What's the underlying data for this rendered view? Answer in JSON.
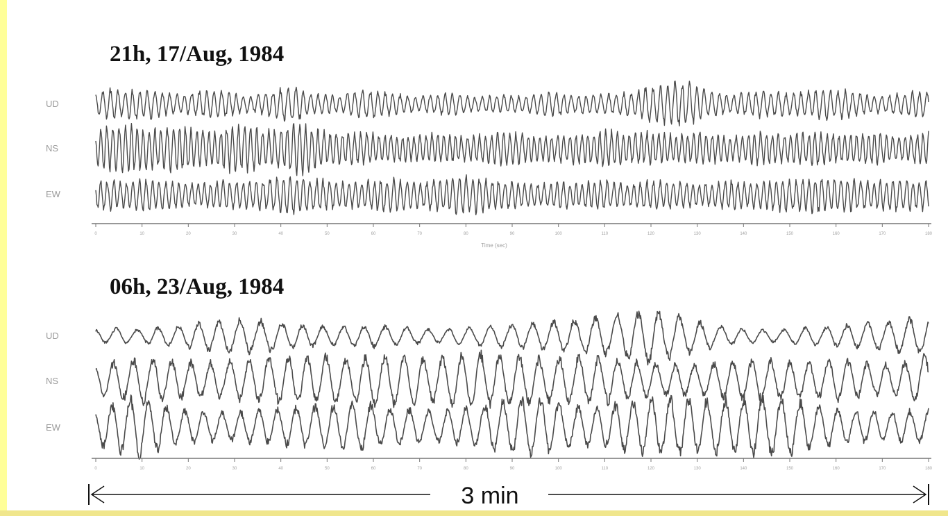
{
  "colors": {
    "frame_left": "#ffff99",
    "frame_bottom": "#f0e68c",
    "trace": "#4a4a4a",
    "axis": "#777777",
    "label_gray": "#9a9a9a",
    "title": "#111111"
  },
  "chart_data": [
    {
      "type": "line",
      "title": "21h, 17/Aug, 1984",
      "xlabel": "Time (sec)",
      "ylabel": "",
      "channels": [
        "UD",
        "NS",
        "EW"
      ],
      "x_ticks": [
        0,
        10,
        20,
        30,
        40,
        50,
        60,
        70,
        80,
        90,
        100,
        110,
        120,
        130,
        140,
        150,
        160,
        170,
        180
      ],
      "xlim": [
        0,
        180
      ],
      "grid": false,
      "series": [
        {
          "name": "UD",
          "period_s": 1.6,
          "amplitude": [
            0.35,
            0.55,
            0.45,
            0.6,
            0.5,
            0.4,
            0.35,
            0.4,
            0.55,
            0.5,
            0.35,
            0.3,
            0.4,
            0.55,
            0.7,
            0.4,
            0.35,
            0.3,
            0.4,
            0.55,
            0.5,
            0.4,
            0.3,
            0.3,
            0.35,
            0.4,
            0.35,
            0.25,
            0.3,
            0.35,
            0.3,
            0.35,
            0.45,
            0.4,
            0.3,
            0.35,
            0.35,
            0.4,
            0.45,
            0.6,
            0.7,
            0.85,
            0.8,
            0.55,
            0.4,
            0.35,
            0.4,
            0.5,
            0.45,
            0.4,
            0.45,
            0.5,
            0.55,
            0.5,
            0.4,
            0.35,
            0.3,
            0.4,
            0.45,
            0.5
          ]
        },
        {
          "name": "NS",
          "period_s": 1.3,
          "amplitude": [
            0.6,
            0.85,
            0.9,
            0.75,
            0.7,
            0.8,
            0.85,
            0.7,
            0.6,
            0.75,
            0.85,
            0.8,
            0.7,
            0.75,
            0.9,
            0.85,
            0.65,
            0.6,
            0.55,
            0.6,
            0.55,
            0.5,
            0.45,
            0.5,
            0.55,
            0.5,
            0.45,
            0.5,
            0.55,
            0.6,
            0.55,
            0.5,
            0.45,
            0.5,
            0.55,
            0.6,
            0.65,
            0.6,
            0.55,
            0.6,
            0.55,
            0.5,
            0.55,
            0.6,
            0.5,
            0.45,
            0.5,
            0.6,
            0.55,
            0.5,
            0.6,
            0.65,
            0.55,
            0.5,
            0.55,
            0.6,
            0.5,
            0.45,
            0.55,
            0.6
          ]
        },
        {
          "name": "EW",
          "period_s": 1.4,
          "amplitude": [
            0.5,
            0.55,
            0.45,
            0.55,
            0.6,
            0.5,
            0.45,
            0.4,
            0.45,
            0.55,
            0.5,
            0.45,
            0.55,
            0.65,
            0.7,
            0.6,
            0.55,
            0.5,
            0.45,
            0.5,
            0.55,
            0.6,
            0.5,
            0.45,
            0.55,
            0.6,
            0.7,
            0.65,
            0.55,
            0.5,
            0.45,
            0.4,
            0.45,
            0.5,
            0.45,
            0.5,
            0.55,
            0.45,
            0.4,
            0.5,
            0.55,
            0.5,
            0.45,
            0.4,
            0.45,
            0.55,
            0.5,
            0.45,
            0.55,
            0.6,
            0.55,
            0.65,
            0.6,
            0.7,
            0.55,
            0.5,
            0.55,
            0.6,
            0.5,
            0.55
          ]
        }
      ]
    },
    {
      "type": "line",
      "title": "06h, 23/Aug, 1984",
      "xlabel": "",
      "ylabel": "",
      "channels": [
        "UD",
        "NS",
        "EW"
      ],
      "x_ticks": [
        0,
        10,
        20,
        30,
        40,
        50,
        60,
        70,
        80,
        90,
        100,
        110,
        120,
        130,
        140,
        150,
        160,
        170,
        180
      ],
      "xlim": [
        0,
        180
      ],
      "grid": false,
      "series": [
        {
          "name": "UD",
          "period_s": 4.5,
          "amplitude": [
            0.2,
            0.25,
            0.2,
            0.3,
            0.35,
            0.45,
            0.5,
            0.55,
            0.5,
            0.4,
            0.35,
            0.3,
            0.3,
            0.35,
            0.3,
            0.25,
            0.2,
            0.25,
            0.3,
            0.35,
            0.4,
            0.45,
            0.5,
            0.55,
            0.6,
            0.75,
            0.85,
            0.7,
            0.5,
            0.35,
            0.25,
            0.2,
            0.2,
            0.25,
            0.3,
            0.35,
            0.4,
            0.45,
            0.55,
            0.6
          ]
        },
        {
          "name": "NS",
          "period_s": 4.2,
          "amplitude": [
            0.45,
            0.6,
            0.7,
            0.75,
            0.6,
            0.55,
            0.6,
            0.65,
            0.7,
            0.75,
            0.8,
            0.75,
            0.7,
            0.75,
            0.8,
            0.75,
            0.7,
            0.8,
            0.85,
            0.8,
            0.75,
            0.7,
            0.75,
            0.8,
            0.75,
            0.6,
            0.55,
            0.5,
            0.5,
            0.55,
            0.6,
            0.65,
            0.6,
            0.55,
            0.6,
            0.65,
            0.55,
            0.5,
            0.55,
            0.9
          ]
        },
        {
          "name": "EW",
          "period_s": 4.0,
          "amplitude": [
            0.55,
            0.8,
            0.95,
            0.75,
            0.55,
            0.5,
            0.45,
            0.5,
            0.55,
            0.6,
            0.65,
            0.7,
            0.75,
            0.7,
            0.6,
            0.55,
            0.5,
            0.55,
            0.65,
            0.8,
            0.95,
            0.9,
            0.7,
            0.6,
            0.65,
            0.8,
            0.9,
            0.95,
            0.9,
            0.85,
            0.9,
            0.95,
            0.95,
            0.85,
            0.7,
            0.55,
            0.5,
            0.45,
            0.5,
            0.55
          ]
        }
      ]
    }
  ],
  "duration_annotation": {
    "label": "3 min"
  }
}
